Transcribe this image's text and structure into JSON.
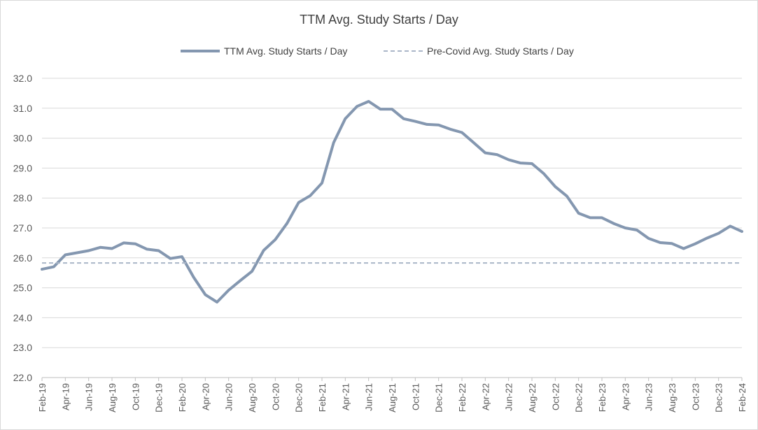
{
  "chart_data": {
    "type": "line",
    "title": "TTM Avg. Study Starts / Day",
    "ylim": [
      22.0,
      32.0
    ],
    "yticks": [
      "22.0",
      "23.0",
      "24.0",
      "25.0",
      "26.0",
      "27.0",
      "28.0",
      "29.0",
      "30.0",
      "31.0",
      "32.0"
    ],
    "grid": true,
    "legend_position": "top",
    "x_tick_labels": [
      "Feb-19",
      "Apr-19",
      "Jun-19",
      "Aug-19",
      "Oct-19",
      "Dec-19",
      "Feb-20",
      "Apr-20",
      "Jun-20",
      "Aug-20",
      "Oct-20",
      "Dec-20",
      "Feb-21",
      "Apr-21",
      "Jun-21",
      "Aug-21",
      "Oct-21",
      "Dec-21",
      "Feb-22",
      "Apr-22",
      "Jun-22",
      "Aug-22",
      "Oct-22",
      "Dec-22",
      "Feb-23",
      "Apr-23",
      "Jun-23",
      "Aug-23",
      "Oct-23",
      "Dec-23",
      "Feb-24"
    ],
    "x": [
      "Feb-19",
      "Mar-19",
      "Apr-19",
      "May-19",
      "Jun-19",
      "Jul-19",
      "Aug-19",
      "Sep-19",
      "Oct-19",
      "Nov-19",
      "Dec-19",
      "Jan-20",
      "Feb-20",
      "Mar-20",
      "Apr-20",
      "May-20",
      "Jun-20",
      "Jul-20",
      "Aug-20",
      "Sep-20",
      "Oct-20",
      "Nov-20",
      "Dec-20",
      "Jan-21",
      "Feb-21",
      "Mar-21",
      "Apr-21",
      "May-21",
      "Jun-21",
      "Jul-21",
      "Aug-21",
      "Sep-21",
      "Oct-21",
      "Nov-21",
      "Dec-21",
      "Jan-22",
      "Feb-22",
      "Mar-22",
      "Apr-22",
      "May-22",
      "Jun-22",
      "Jul-22",
      "Aug-22",
      "Sep-22",
      "Oct-22",
      "Nov-22",
      "Dec-22",
      "Jan-23",
      "Feb-23",
      "Mar-23",
      "Apr-23",
      "May-23",
      "Jun-23",
      "Jul-23",
      "Aug-23",
      "Sep-23",
      "Oct-23",
      "Nov-23",
      "Dec-23",
      "Jan-24",
      "Feb-24"
    ],
    "series": [
      {
        "name": "TTM Avg. Study Starts / Day",
        "color": "#8497b0",
        "style": "solid",
        "values": [
          25.62,
          25.7,
          26.1,
          26.17,
          26.24,
          26.35,
          26.31,
          26.5,
          26.47,
          26.29,
          26.24,
          25.98,
          26.04,
          25.35,
          24.77,
          24.52,
          24.92,
          25.24,
          25.55,
          26.25,
          26.61,
          27.15,
          27.85,
          28.08,
          28.5,
          29.85,
          30.65,
          31.06,
          31.23,
          30.97,
          30.97,
          30.65,
          30.56,
          30.46,
          30.44,
          30.3,
          30.19,
          29.85,
          29.51,
          29.45,
          29.28,
          29.17,
          29.15,
          28.82,
          28.38,
          28.06,
          27.49,
          27.34,
          27.34,
          27.15,
          27.0,
          26.93,
          26.65,
          26.51,
          26.48,
          26.31,
          26.47,
          26.66,
          26.82,
          27.06,
          26.88
        ]
      },
      {
        "name": "Pre-Covid Avg. Study Starts / Day",
        "color": "#aab6c8",
        "style": "dashed",
        "values": [
          25.83,
          25.83,
          25.83,
          25.83,
          25.83,
          25.83,
          25.83,
          25.83,
          25.83,
          25.83,
          25.83,
          25.83,
          25.83,
          25.83,
          25.83,
          25.83,
          25.83,
          25.83,
          25.83,
          25.83,
          25.83,
          25.83,
          25.83,
          25.83,
          25.83,
          25.83,
          25.83,
          25.83,
          25.83,
          25.83,
          25.83,
          25.83,
          25.83,
          25.83,
          25.83,
          25.83,
          25.83,
          25.83,
          25.83,
          25.83,
          25.83,
          25.83,
          25.83,
          25.83,
          25.83,
          25.83,
          25.83,
          25.83,
          25.83,
          25.83,
          25.83,
          25.83,
          25.83,
          25.83,
          25.83,
          25.83,
          25.83,
          25.83,
          25.83,
          25.83,
          25.83
        ]
      }
    ]
  }
}
